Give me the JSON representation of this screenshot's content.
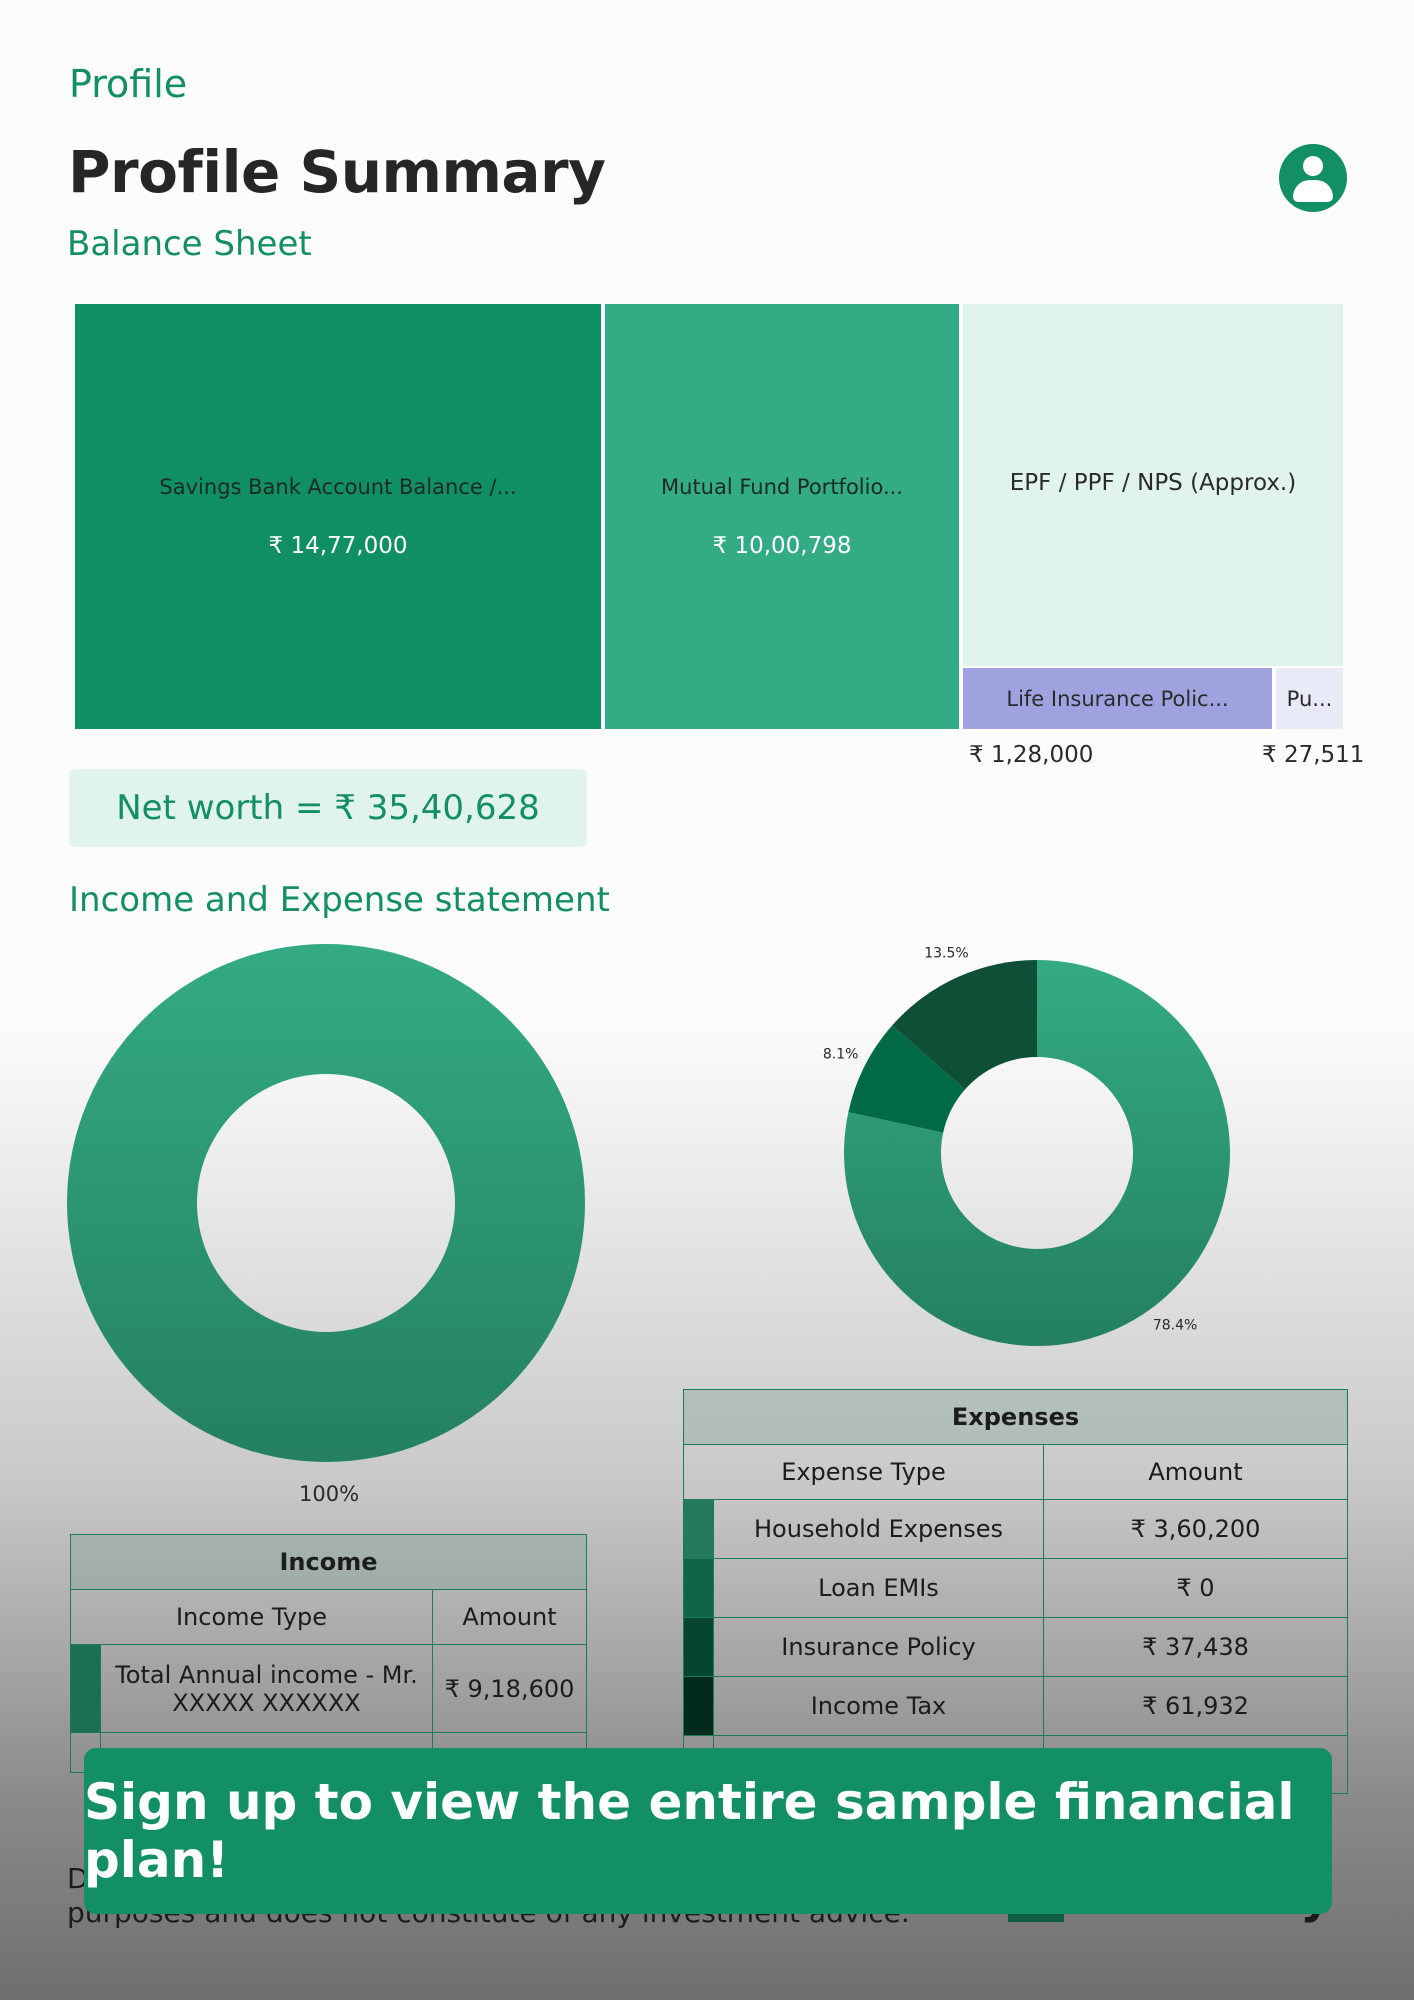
{
  "header": {
    "breadcrumb": "Profile",
    "title": "Profile Summary"
  },
  "balance_sheet": {
    "section_title": "Balance Sheet",
    "tiles": [
      {
        "label": "Savings Bank Account Balance /...",
        "value": "₹ 14,77,000",
        "color": "#118f64"
      },
      {
        "label": "Mutual Fund Portfolio...",
        "value": "₹ 10,00,798",
        "color": "#33ab84"
      },
      {
        "label": "EPF / PPF / NPS (Approx.)",
        "color": "#e0f3ec"
      },
      {
        "label": "Life Insurance Polic...",
        "value": "₹ 1,28,000",
        "color": "#9ea3e0"
      },
      {
        "label": "Pu...",
        "value": "₹ 27,511",
        "color": "#e9eaf8"
      }
    ],
    "net_worth": "Net worth = ₹ 35,40,628"
  },
  "income_expense": {
    "section_title": "Income and Expense statement",
    "income_pct_label": "100%",
    "income_table": {
      "caption": "Income",
      "headers": [
        "Income Type",
        "Amount"
      ],
      "rows": [
        {
          "type": "Total Annual income - Mr. XXXXX XXXXXX",
          "amount": "₹ 9,18,600",
          "swatch": "#1d6f52"
        }
      ]
    },
    "expense_table": {
      "caption": "Expenses",
      "headers": [
        "Expense Type",
        "Amount"
      ],
      "rows": [
        {
          "type": "Household Expenses",
          "amount": "₹ 3,60,200",
          "swatch": "#257a5b"
        },
        {
          "type": "Loan EMIs",
          "amount": "₹ 0",
          "swatch": "#0e6547"
        },
        {
          "type": "Insurance Policy",
          "amount": "₹ 37,438",
          "swatch": "#06452f"
        },
        {
          "type": "Income Tax",
          "amount": "₹ 61,932",
          "swatch": "#032b1d"
        }
      ]
    }
  },
  "chart_data": [
    {
      "type": "pie",
      "donut": true,
      "labels": [
        "Total Annual income - Mr. XXXXX XXXXXX"
      ],
      "values": [
        100
      ],
      "data_labels": [
        "100%"
      ],
      "colors": [
        "#33ab84"
      ]
    },
    {
      "type": "pie",
      "donut": true,
      "labels": [
        "Household Expenses",
        "Loan EMIs",
        "Insurance Policy",
        "Income Tax"
      ],
      "values": [
        78.4,
        0,
        8.1,
        13.5
      ],
      "data_labels": [
        "78.4%",
        "",
        "8.1%",
        "13.5%"
      ],
      "colors": [
        "#2fa27c",
        "#0e6547",
        "#006a45",
        "#0f4f35"
      ]
    }
  ],
  "banner": {
    "text": "Sign up to view the entire sample financial plan!"
  },
  "footer": {
    "disclaimer_line1": "D",
    "disclaimer_line2": "purposes and does not constitute of any investment advice.",
    "brand_tail": "y"
  }
}
